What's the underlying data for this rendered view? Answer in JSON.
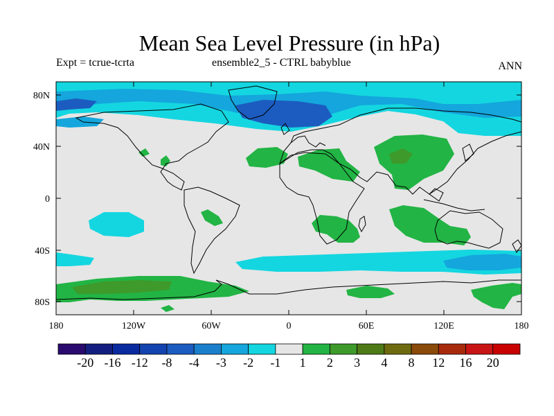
{
  "title": "Mean Sea Level Pressure (in hPa)",
  "subtitle_left": "Expt = tcrue-tcrta",
  "subtitle_center": "ensemble2_5 - CTRL babyblue",
  "subtitle_right": "ANN",
  "map": {
    "projection": "cylindrical-equidistant",
    "lon_range": [
      -180,
      180
    ],
    "lat_range": [
      -90,
      90
    ],
    "lat_ticks": [
      {
        "value": 80,
        "label": "80N"
      },
      {
        "value": 40,
        "label": "40N"
      },
      {
        "value": 0,
        "label": "0"
      },
      {
        "value": -40,
        "label": "40S"
      },
      {
        "value": -80,
        "label": "80S"
      }
    ],
    "lon_ticks": [
      {
        "value": -180,
        "label": "180"
      },
      {
        "value": -120,
        "label": "120W"
      },
      {
        "value": -60,
        "label": "60W"
      },
      {
        "value": 0,
        "label": "0"
      },
      {
        "value": 60,
        "label": "60E"
      },
      {
        "value": 120,
        "label": "120E"
      },
      {
        "value": 180,
        "label": "180"
      }
    ]
  },
  "colorbar": {
    "labels": [
      "-20",
      "-16",
      "-12",
      "-8",
      "-4",
      "-3",
      "-2",
      "-1",
      "1",
      "2",
      "3",
      "4",
      "8",
      "12",
      "16",
      "20"
    ],
    "colors": [
      "#2a0a6e",
      "#141e80",
      "#0a2aa0",
      "#1444b0",
      "#1c5cc0",
      "#1a80cc",
      "#14a6dc",
      "#14d6e0",
      "#e6e6e6",
      "#22b444",
      "#3e9a2a",
      "#4e7a18",
      "#6e6a10",
      "#8a4a0a",
      "#a82a0c",
      "#c81414",
      "#c80000"
    ]
  },
  "colors": {
    "background": "#e6e6e6",
    "coast": "#000000"
  }
}
